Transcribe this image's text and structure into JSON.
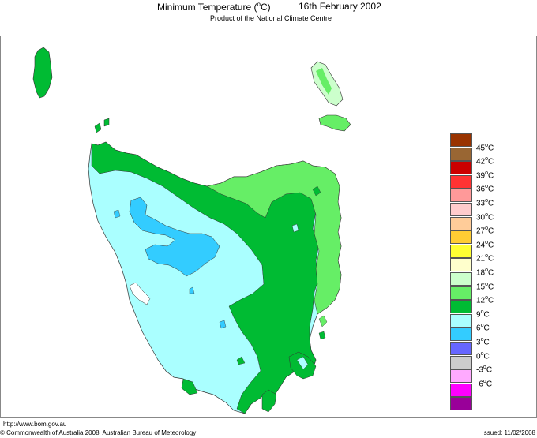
{
  "header": {
    "parameter_prefix": "Minimum Temperature (",
    "parameter_unit_sup": "o",
    "parameter_suffix": "C)",
    "date": "16th February 2002",
    "subtitle": "Product of the National Climate Centre"
  },
  "legend": {
    "unit_sup": "o",
    "unit": "C",
    "entries": [
      {
        "value": "45",
        "color": "#993300"
      },
      {
        "value": "42",
        "color": "#996633"
      },
      {
        "value": "39",
        "color": "#cc0000"
      },
      {
        "value": "36",
        "color": "#ff3333"
      },
      {
        "value": "33",
        "color": "#ff9999"
      },
      {
        "value": "30",
        "color": "#ffcccc"
      },
      {
        "value": "27",
        "color": "#ffcc99"
      },
      {
        "value": "24",
        "color": "#ffcc33"
      },
      {
        "value": "21",
        "color": "#ffff33"
      },
      {
        "value": "18",
        "color": "#ffffcc"
      },
      {
        "value": "15",
        "color": "#ccffcc"
      },
      {
        "value": "12",
        "color": "#66ee66"
      },
      {
        "value": "9",
        "color": "#00bb33"
      },
      {
        "value": "6",
        "color": "#aaffff"
      },
      {
        "value": "3",
        "color": "#33ccff"
      },
      {
        "value": "0",
        "color": "#6666ff"
      },
      {
        "value": "-3",
        "color": "#cccccc"
      },
      {
        "value": "-6",
        "color": "#ffaaff"
      },
      {
        "value": "",
        "color": "#ff00ff"
      },
      {
        "value": "",
        "color": "#990099"
      }
    ]
  },
  "map_colors": {
    "band_9_12": "#aaffff",
    "band_6_9": "#33ccff",
    "band_12_15": "#00bb33",
    "band_15_18": "#66ee66",
    "band_18_21": "#ccffcc",
    "outline": "#333333"
  },
  "footer": {
    "url": "http://www.bom.gov.au",
    "copyright": "© Commonwealth of Australia 2008, Australian Bureau of Meteorology",
    "issued": "Issued: 11/02/2008"
  }
}
